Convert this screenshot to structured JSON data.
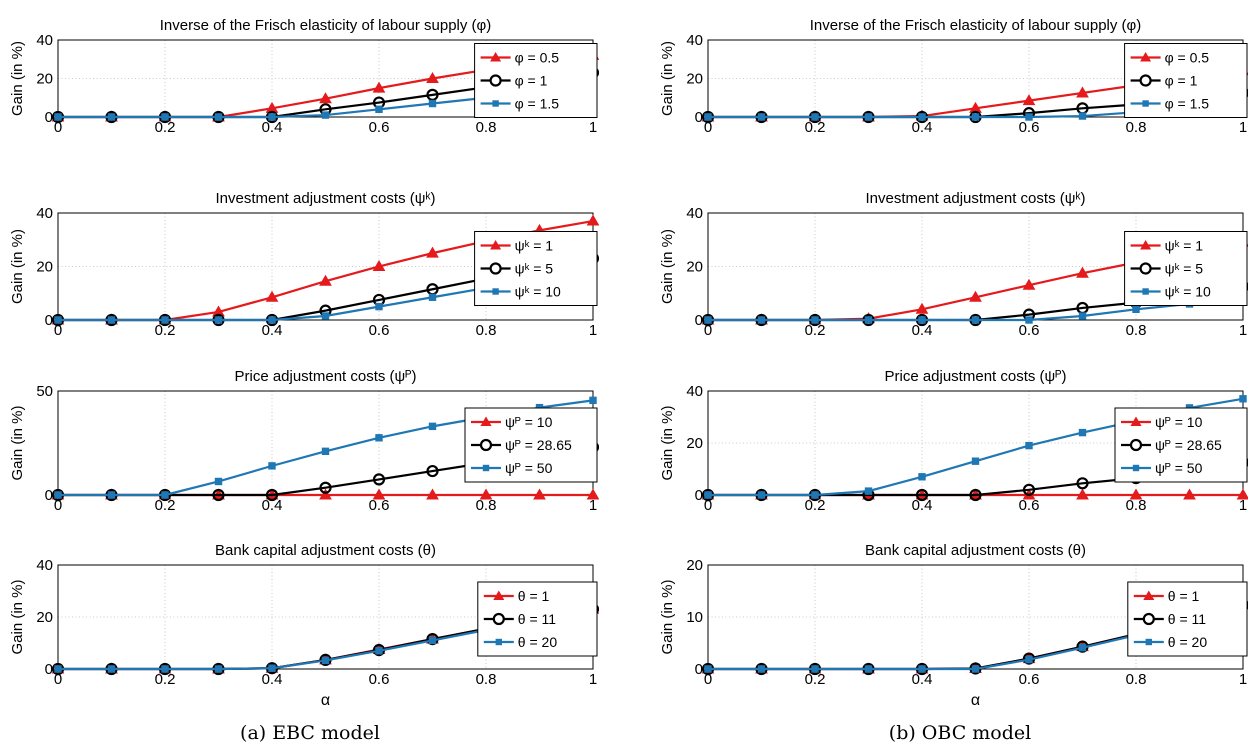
{
  "captions": {
    "a": "(a) EBC model",
    "b": "(b) OBC model"
  },
  "series_colors": {
    "red": "#e41a1c",
    "black": "#000000",
    "blue": "#1f77b4"
  },
  "x_tick_labels": [
    "0",
    "0.2",
    "0.4",
    "0.6",
    "0.8",
    "1"
  ],
  "chart_data": [
    {
      "id": "ebc-frisch",
      "type": "line",
      "title": "Inverse of the Frisch elasticity of labour supply (φ)",
      "xlabel": "",
      "ylabel": "Gain (in %)",
      "xlim": [
        0,
        1
      ],
      "ylim": [
        0,
        40
      ],
      "yticks": [
        0,
        20,
        40
      ],
      "grid": true,
      "legend_position": "right",
      "x": [
        0,
        0.1,
        0.2,
        0.3,
        0.4,
        0.5,
        0.6,
        0.7,
        0.8,
        0.9,
        1
      ],
      "series": [
        {
          "name": "φ = 0.5",
          "color": "red",
          "marker": "triangle",
          "values": [
            0,
            0,
            0,
            0,
            4.5,
            9.5,
            15,
            20,
            24.5,
            28.5,
            32
          ]
        },
        {
          "name": "φ = 1",
          "color": "black",
          "marker": "circle",
          "values": [
            0,
            0,
            0,
            0,
            0,
            4,
            7.5,
            11.5,
            15.5,
            19.5,
            23
          ]
        },
        {
          "name": "φ = 1.5",
          "color": "blue",
          "marker": "square",
          "values": [
            0,
            0,
            0,
            0,
            0,
            1,
            4,
            7,
            10,
            13.5,
            17
          ]
        }
      ]
    },
    {
      "id": "ebc-invest",
      "type": "line",
      "title": "Investment adjustment costs (ψᵏ)",
      "xlabel": "",
      "ylabel": "Gain (in %)",
      "xlim": [
        0,
        1
      ],
      "ylim": [
        0,
        40
      ],
      "yticks": [
        0,
        20,
        40
      ],
      "grid": true,
      "legend_position": "right",
      "x": [
        0,
        0.1,
        0.2,
        0.3,
        0.4,
        0.5,
        0.6,
        0.7,
        0.8,
        0.9,
        1
      ],
      "series": [
        {
          "name": "ψᵏ = 1",
          "color": "red",
          "marker": "triangle",
          "values": [
            0,
            0,
            0,
            3,
            8.5,
            14.5,
            20,
            25,
            29.5,
            33.5,
            37
          ]
        },
        {
          "name": "ψᵏ = 5",
          "color": "black",
          "marker": "circle",
          "values": [
            0,
            0,
            0,
            0,
            0,
            3.5,
            7.5,
            11.5,
            15.5,
            19.5,
            23
          ]
        },
        {
          "name": "ψᵏ = 10",
          "color": "blue",
          "marker": "square",
          "values": [
            0,
            0,
            0,
            0,
            0,
            1.5,
            5,
            8.5,
            12,
            16,
            19.5
          ]
        }
      ]
    },
    {
      "id": "ebc-price",
      "type": "line",
      "title": "Price adjustment costs (ψᴾ)",
      "xlabel": "",
      "ylabel": "Gain (in %)",
      "xlim": [
        0,
        1
      ],
      "ylim": [
        0,
        50
      ],
      "yticks": [
        0,
        50
      ],
      "grid": true,
      "legend_position": "right",
      "x": [
        0,
        0.1,
        0.2,
        0.3,
        0.4,
        0.5,
        0.6,
        0.7,
        0.8,
        0.9,
        1
      ],
      "series": [
        {
          "name": "ψᴾ = 10",
          "color": "red",
          "marker": "triangle",
          "values": [
            0,
            0,
            0,
            0,
            0,
            0,
            0,
            0,
            0,
            0,
            0
          ]
        },
        {
          "name": "ψᴾ = 28.65",
          "color": "black",
          "marker": "circle",
          "values": [
            0,
            0,
            0,
            0,
            0,
            3.5,
            7.5,
            11.5,
            15.5,
            19.5,
            23
          ]
        },
        {
          "name": "ψᴾ = 50",
          "color": "blue",
          "marker": "square",
          "values": [
            0,
            0,
            0,
            6.5,
            14,
            21,
            27.5,
            33,
            37.5,
            42,
            45.5
          ]
        }
      ]
    },
    {
      "id": "ebc-bank",
      "type": "line",
      "title": "Bank capital adjustment costs (θ)",
      "xlabel": "α",
      "ylabel": "Gain (in %)",
      "xlim": [
        0,
        1
      ],
      "ylim": [
        0,
        40
      ],
      "yticks": [
        0,
        20,
        40
      ],
      "grid": true,
      "legend_position": "right",
      "x": [
        0,
        0.1,
        0.2,
        0.3,
        0.4,
        0.5,
        0.6,
        0.7,
        0.8,
        0.9,
        1
      ],
      "series": [
        {
          "name": "θ = 1",
          "color": "red",
          "marker": "triangle",
          "values": [
            0,
            0,
            0,
            0,
            0.3,
            3.5,
            7.5,
            11.5,
            15.5,
            19.5,
            23
          ]
        },
        {
          "name": "θ = 11",
          "color": "black",
          "marker": "circle",
          "values": [
            0,
            0,
            0,
            0,
            0.3,
            3.5,
            7.3,
            11.5,
            15.5,
            19.5,
            23
          ]
        },
        {
          "name": "θ = 20",
          "color": "blue",
          "marker": "square",
          "values": [
            0,
            0,
            0,
            0,
            0.3,
            3.3,
            7,
            11,
            15,
            19,
            22.5
          ]
        }
      ]
    },
    {
      "id": "obc-frisch",
      "type": "line",
      "title": "Inverse of the Frisch elasticity of labour supply (φ)",
      "xlabel": "",
      "ylabel": "Gain (in %)",
      "xlim": [
        0,
        1
      ],
      "ylim": [
        0,
        40
      ],
      "yticks": [
        0,
        20,
        40
      ],
      "grid": true,
      "legend_position": "right",
      "x": [
        0,
        0.1,
        0.2,
        0.3,
        0.4,
        0.5,
        0.6,
        0.7,
        0.8,
        0.9,
        1
      ],
      "series": [
        {
          "name": "φ = 0.5",
          "color": "red",
          "marker": "triangle",
          "values": [
            0,
            0,
            0,
            0,
            0.5,
            4.5,
            8.5,
            12.5,
            16.5,
            20.5,
            24
          ]
        },
        {
          "name": "φ = 1",
          "color": "black",
          "marker": "circle",
          "values": [
            0,
            0,
            0,
            0,
            0,
            0,
            2,
            4.5,
            6.5,
            9.5,
            12.5
          ]
        },
        {
          "name": "φ = 1.5",
          "color": "blue",
          "marker": "square",
          "values": [
            0,
            0,
            0,
            0,
            0,
            0,
            0,
            0.5,
            2.5,
            4.5,
            6
          ]
        }
      ]
    },
    {
      "id": "obc-invest",
      "type": "line",
      "title": "Investment adjustment costs (ψᵏ)",
      "xlabel": "",
      "ylabel": "Gain (in %)",
      "xlim": [
        0,
        1
      ],
      "ylim": [
        0,
        40
      ],
      "yticks": [
        0,
        20,
        40
      ],
      "grid": true,
      "legend_position": "right",
      "x": [
        0,
        0.1,
        0.2,
        0.3,
        0.4,
        0.5,
        0.6,
        0.7,
        0.8,
        0.9,
        1
      ],
      "series": [
        {
          "name": "ψᵏ = 1",
          "color": "red",
          "marker": "triangle",
          "values": [
            0,
            0,
            0,
            0.5,
            4,
            8.5,
            13,
            17.5,
            21.5,
            25.5,
            29
          ]
        },
        {
          "name": "ψᵏ = 5",
          "color": "black",
          "marker": "circle",
          "values": [
            0,
            0,
            0,
            0,
            0,
            0,
            2,
            4.5,
            6.5,
            9.5,
            12.5
          ]
        },
        {
          "name": "ψᵏ = 10",
          "color": "blue",
          "marker": "square",
          "values": [
            0,
            0,
            0,
            0,
            0,
            0,
            0,
            1.5,
            4,
            6,
            8
          ]
        }
      ]
    },
    {
      "id": "obc-price",
      "type": "line",
      "title": "Price adjustment costs (ψᴾ)",
      "xlabel": "",
      "ylabel": "Gain (in %)",
      "xlim": [
        0,
        1
      ],
      "ylim": [
        0,
        40
      ],
      "yticks": [
        0,
        20,
        40
      ],
      "grid": true,
      "legend_position": "right",
      "x": [
        0,
        0.1,
        0.2,
        0.3,
        0.4,
        0.5,
        0.6,
        0.7,
        0.8,
        0.9,
        1
      ],
      "series": [
        {
          "name": "ψᴾ = 10",
          "color": "red",
          "marker": "triangle",
          "values": [
            0,
            0,
            0,
            0,
            0,
            0,
            0,
            0,
            0,
            0,
            0
          ]
        },
        {
          "name": "ψᴾ = 28.65",
          "color": "black",
          "marker": "circle",
          "values": [
            0,
            0,
            0,
            0,
            0,
            0,
            2,
            4.5,
            6.5,
            9.5,
            12.5
          ]
        },
        {
          "name": "ψᴾ = 50",
          "color": "blue",
          "marker": "square",
          "values": [
            0,
            0,
            0,
            1.5,
            7,
            13,
            19,
            24,
            28.5,
            33.5,
            37
          ]
        }
      ]
    },
    {
      "id": "obc-bank",
      "type": "line",
      "title": "Bank capital adjustment costs (θ)",
      "xlabel": "α",
      "ylabel": "Gain (in %)",
      "xlim": [
        0,
        1
      ],
      "ylim": [
        0,
        20
      ],
      "yticks": [
        0,
        10,
        20
      ],
      "grid": true,
      "legend_position": "right",
      "x": [
        0,
        0.1,
        0.2,
        0.3,
        0.4,
        0.5,
        0.6,
        0.7,
        0.8,
        0.9,
        1
      ],
      "series": [
        {
          "name": "θ = 1",
          "color": "red",
          "marker": "triangle",
          "values": [
            0,
            0,
            0,
            0,
            0,
            0.1,
            2,
            4.3,
            6.7,
            9.5,
            12.3
          ]
        },
        {
          "name": "θ = 11",
          "color": "black",
          "marker": "circle",
          "values": [
            0,
            0,
            0,
            0,
            0,
            0.1,
            2,
            4.3,
            6.7,
            9.5,
            12.3
          ]
        },
        {
          "name": "θ = 20",
          "color": "blue",
          "marker": "square",
          "values": [
            0,
            0,
            0,
            0,
            0,
            0,
            1.8,
            4.1,
            6.5,
            9.3,
            12.1
          ]
        }
      ]
    }
  ]
}
